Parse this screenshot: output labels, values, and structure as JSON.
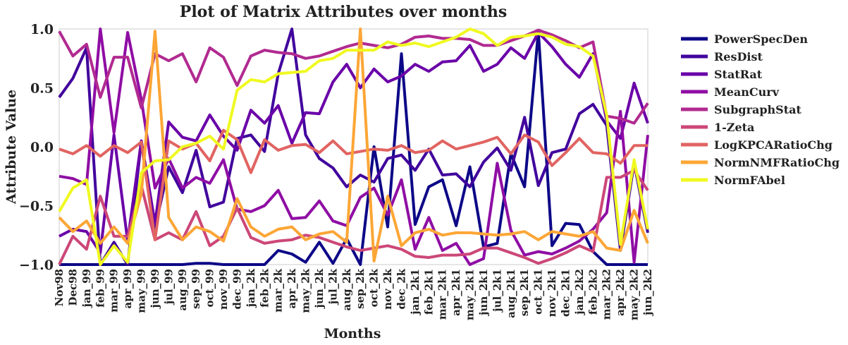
{
  "chart_data": {
    "type": "line",
    "title": "Plot of Matrix Attributes over months",
    "xlabel": "Months",
    "ylabel": "Attribute Value",
    "ylim": [
      -1.0,
      1.0
    ],
    "yticks": [
      "1.0",
      "0.5",
      "0.0",
      "−0.5",
      "−1.0"
    ],
    "ytick_values": [
      1.0,
      0.5,
      0.0,
      -0.5,
      -1.0
    ],
    "legend_position": "outside-right",
    "grid": false,
    "categories": [
      "Nov98",
      "Dec98",
      "jan_99",
      "feb_99",
      "mar_99",
      "apr_99",
      "may_99",
      "jun_99",
      "jul_99",
      "aug_99",
      "sep_99",
      "oct_99",
      "nov_99",
      "dec_99",
      "jan_2k",
      "feb_2k",
      "mar_2k",
      "apr_2k",
      "may_2k",
      "jun_2k",
      "jul_2k",
      "aug_2k",
      "sep_2k",
      "oct_2k",
      "nov_2k",
      "dec_2k",
      "jan_2k1",
      "feb_2k1",
      "mar_2k1",
      "apr_2k1",
      "may_2k1",
      "jun_2k1",
      "jul_2k1",
      "aug_2k1",
      "sep_2k1",
      "oct_2k1",
      "nov_2k1",
      "dec_2k1",
      "jan_2k2",
      "feb_2k2",
      "mar_2k2",
      "apr_2k2",
      "may_2k2",
      "jun_2k2"
    ],
    "series": [
      {
        "name": "PowerSpecDen",
        "color": "#0d0887",
        "values": [
          -1.0,
          -1.0,
          -1.0,
          -1.0,
          -1.0,
          -1.0,
          -1.0,
          -1.0,
          -1.0,
          -1.0,
          -0.99,
          -0.99,
          -1.0,
          -1.0,
          -1.0,
          -1.0,
          -0.88,
          -0.91,
          -0.98,
          -0.81,
          -0.99,
          -0.78,
          -1.0,
          0.0,
          -0.68,
          0.79,
          -0.66,
          -0.34,
          -0.28,
          -0.67,
          -0.17,
          -0.85,
          -0.82,
          -0.06,
          -0.34,
          0.98,
          -0.84,
          -0.65,
          -0.66,
          -0.89,
          -1.0,
          -1.0,
          -1.0,
          -1.0
        ]
      },
      {
        "name": "ResDist",
        "color": "#41049d",
        "values": [
          0.42,
          0.58,
          0.84,
          -1.0,
          -0.81,
          -1.0,
          0.05,
          -0.69,
          -0.17,
          -0.39,
          -0.03,
          -0.51,
          -0.47,
          0.07,
          0.1,
          -0.04,
          0.62,
          1.0,
          0.1,
          -0.1,
          -0.18,
          -0.34,
          -0.24,
          -0.3,
          -0.1,
          -0.07,
          -0.2,
          -0.02,
          -0.24,
          -0.23,
          -0.34,
          -0.13,
          -0.01,
          -0.2,
          0.25,
          -0.33,
          -0.05,
          -0.02,
          0.28,
          0.36,
          0.18,
          -0.88,
          -0.14,
          -0.73
        ]
      },
      {
        "name": "StatRat",
        "color": "#6a00a8",
        "values": [
          -0.76,
          -0.7,
          -0.72,
          -0.9,
          0.1,
          -0.8,
          0.05,
          -0.65,
          0.21,
          0.08,
          0.05,
          0.27,
          0.09,
          -0.03,
          0.31,
          0.2,
          0.35,
          0.03,
          0.29,
          0.28,
          0.55,
          0.7,
          0.5,
          0.66,
          0.55,
          0.6,
          0.7,
          0.64,
          0.72,
          0.73,
          0.86,
          0.64,
          0.7,
          0.84,
          0.75,
          0.97,
          0.85,
          0.7,
          0.59,
          0.79,
          0.22,
          0.07,
          0.54,
          0.2
        ]
      },
      {
        "name": "MeanCurv",
        "color": "#8f0da4",
        "values": [
          -0.25,
          -0.27,
          -0.32,
          1.0,
          0.12,
          0.97,
          0.4,
          -0.35,
          -0.1,
          -0.35,
          -0.26,
          -0.31,
          -0.11,
          -0.53,
          -0.55,
          -0.5,
          -0.37,
          -0.61,
          -0.6,
          -0.46,
          -0.63,
          -0.67,
          -0.43,
          -0.35,
          -0.58,
          -0.28,
          -0.87,
          -0.6,
          -0.88,
          -0.82,
          -1.0,
          -0.95,
          -0.14,
          -0.71,
          -0.92,
          -0.89,
          -0.91,
          -0.86,
          -0.8,
          -0.7,
          -0.56,
          0.3,
          -0.98,
          0.1
        ]
      },
      {
        "name": "SubgraphStat",
        "color": "#b12a90",
        "values": [
          0.98,
          0.77,
          0.87,
          0.42,
          0.76,
          0.76,
          0.33,
          0.79,
          0.73,
          0.79,
          0.55,
          0.84,
          0.76,
          0.52,
          0.77,
          0.82,
          0.8,
          0.79,
          0.75,
          0.77,
          0.81,
          0.85,
          0.88,
          0.86,
          0.84,
          0.87,
          0.93,
          0.94,
          0.92,
          0.92,
          0.91,
          0.86,
          0.86,
          0.9,
          0.94,
          0.99,
          0.95,
          0.9,
          0.84,
          0.89,
          0.26,
          0.24,
          0.2,
          0.37
        ]
      },
      {
        "name": "1-Zeta",
        "color": "#cc4778",
        "values": [
          -1.0,
          -0.76,
          -0.87,
          -0.42,
          -0.76,
          -0.76,
          -0.33,
          -0.79,
          -0.73,
          -0.79,
          -0.55,
          -0.84,
          -0.76,
          -0.52,
          -0.77,
          -0.82,
          -0.8,
          -0.79,
          -0.75,
          -0.77,
          -0.81,
          -0.85,
          -0.88,
          -0.86,
          -0.84,
          -0.87,
          -0.93,
          -0.94,
          -0.92,
          -0.92,
          -0.91,
          -0.86,
          -0.86,
          -0.9,
          -0.94,
          -0.99,
          -0.95,
          -0.9,
          -0.84,
          -0.89,
          -0.26,
          -0.26,
          -0.2,
          -0.37
        ]
      },
      {
        "name": "LogKPCARatioChg",
        "color": "#e16462",
        "values": [
          -0.02,
          -0.06,
          0.01,
          -0.08,
          0.01,
          -0.05,
          0.04,
          -0.79,
          0.05,
          -0.02,
          0.03,
          -0.12,
          0.14,
          0.06,
          -0.22,
          0.06,
          -0.03,
          0.01,
          0.02,
          -0.05,
          0.05,
          -0.06,
          -0.04,
          -0.02,
          -0.03,
          0.01,
          -0.05,
          -0.03,
          0.05,
          -0.02,
          0.01,
          0.04,
          0.08,
          -0.06,
          0.1,
          0.04,
          -0.16,
          -0.05,
          0.07,
          -0.05,
          -0.06,
          -0.14,
          0.01,
          0.01
        ]
      },
      {
        "name": "NormNMFRatioChg",
        "color": "#fca636",
        "values": [
          -0.6,
          -0.72,
          -0.63,
          -0.82,
          -0.68,
          -0.82,
          -0.4,
          0.98,
          -0.6,
          -0.79,
          -0.68,
          -0.72,
          -0.8,
          -0.44,
          -0.68,
          -0.76,
          -0.7,
          -0.68,
          -0.79,
          -0.74,
          -0.72,
          -0.81,
          1.0,
          -0.97,
          -0.42,
          -0.84,
          -0.73,
          -0.7,
          -0.75,
          -0.73,
          -0.73,
          -0.74,
          -0.75,
          -0.74,
          -0.72,
          -0.79,
          -0.72,
          -0.74,
          -0.76,
          -0.72,
          -0.86,
          -0.88,
          -0.54,
          -0.82
        ]
      },
      {
        "name": "NormFAbel",
        "color": "#f0f921",
        "values": [
          -0.55,
          -0.35,
          -0.28,
          -1.0,
          -0.84,
          -0.98,
          -0.22,
          -0.12,
          -0.11,
          0.0,
          0.03,
          0.09,
          -0.02,
          0.48,
          0.57,
          0.55,
          0.62,
          0.63,
          0.64,
          0.73,
          0.75,
          0.82,
          0.82,
          0.82,
          0.89,
          0.86,
          0.88,
          0.85,
          0.89,
          0.93,
          1.0,
          0.96,
          0.86,
          0.93,
          0.94,
          0.96,
          0.93,
          0.87,
          0.85,
          0.77,
          0.27,
          -0.83,
          -0.11,
          -0.7
        ]
      }
    ]
  }
}
